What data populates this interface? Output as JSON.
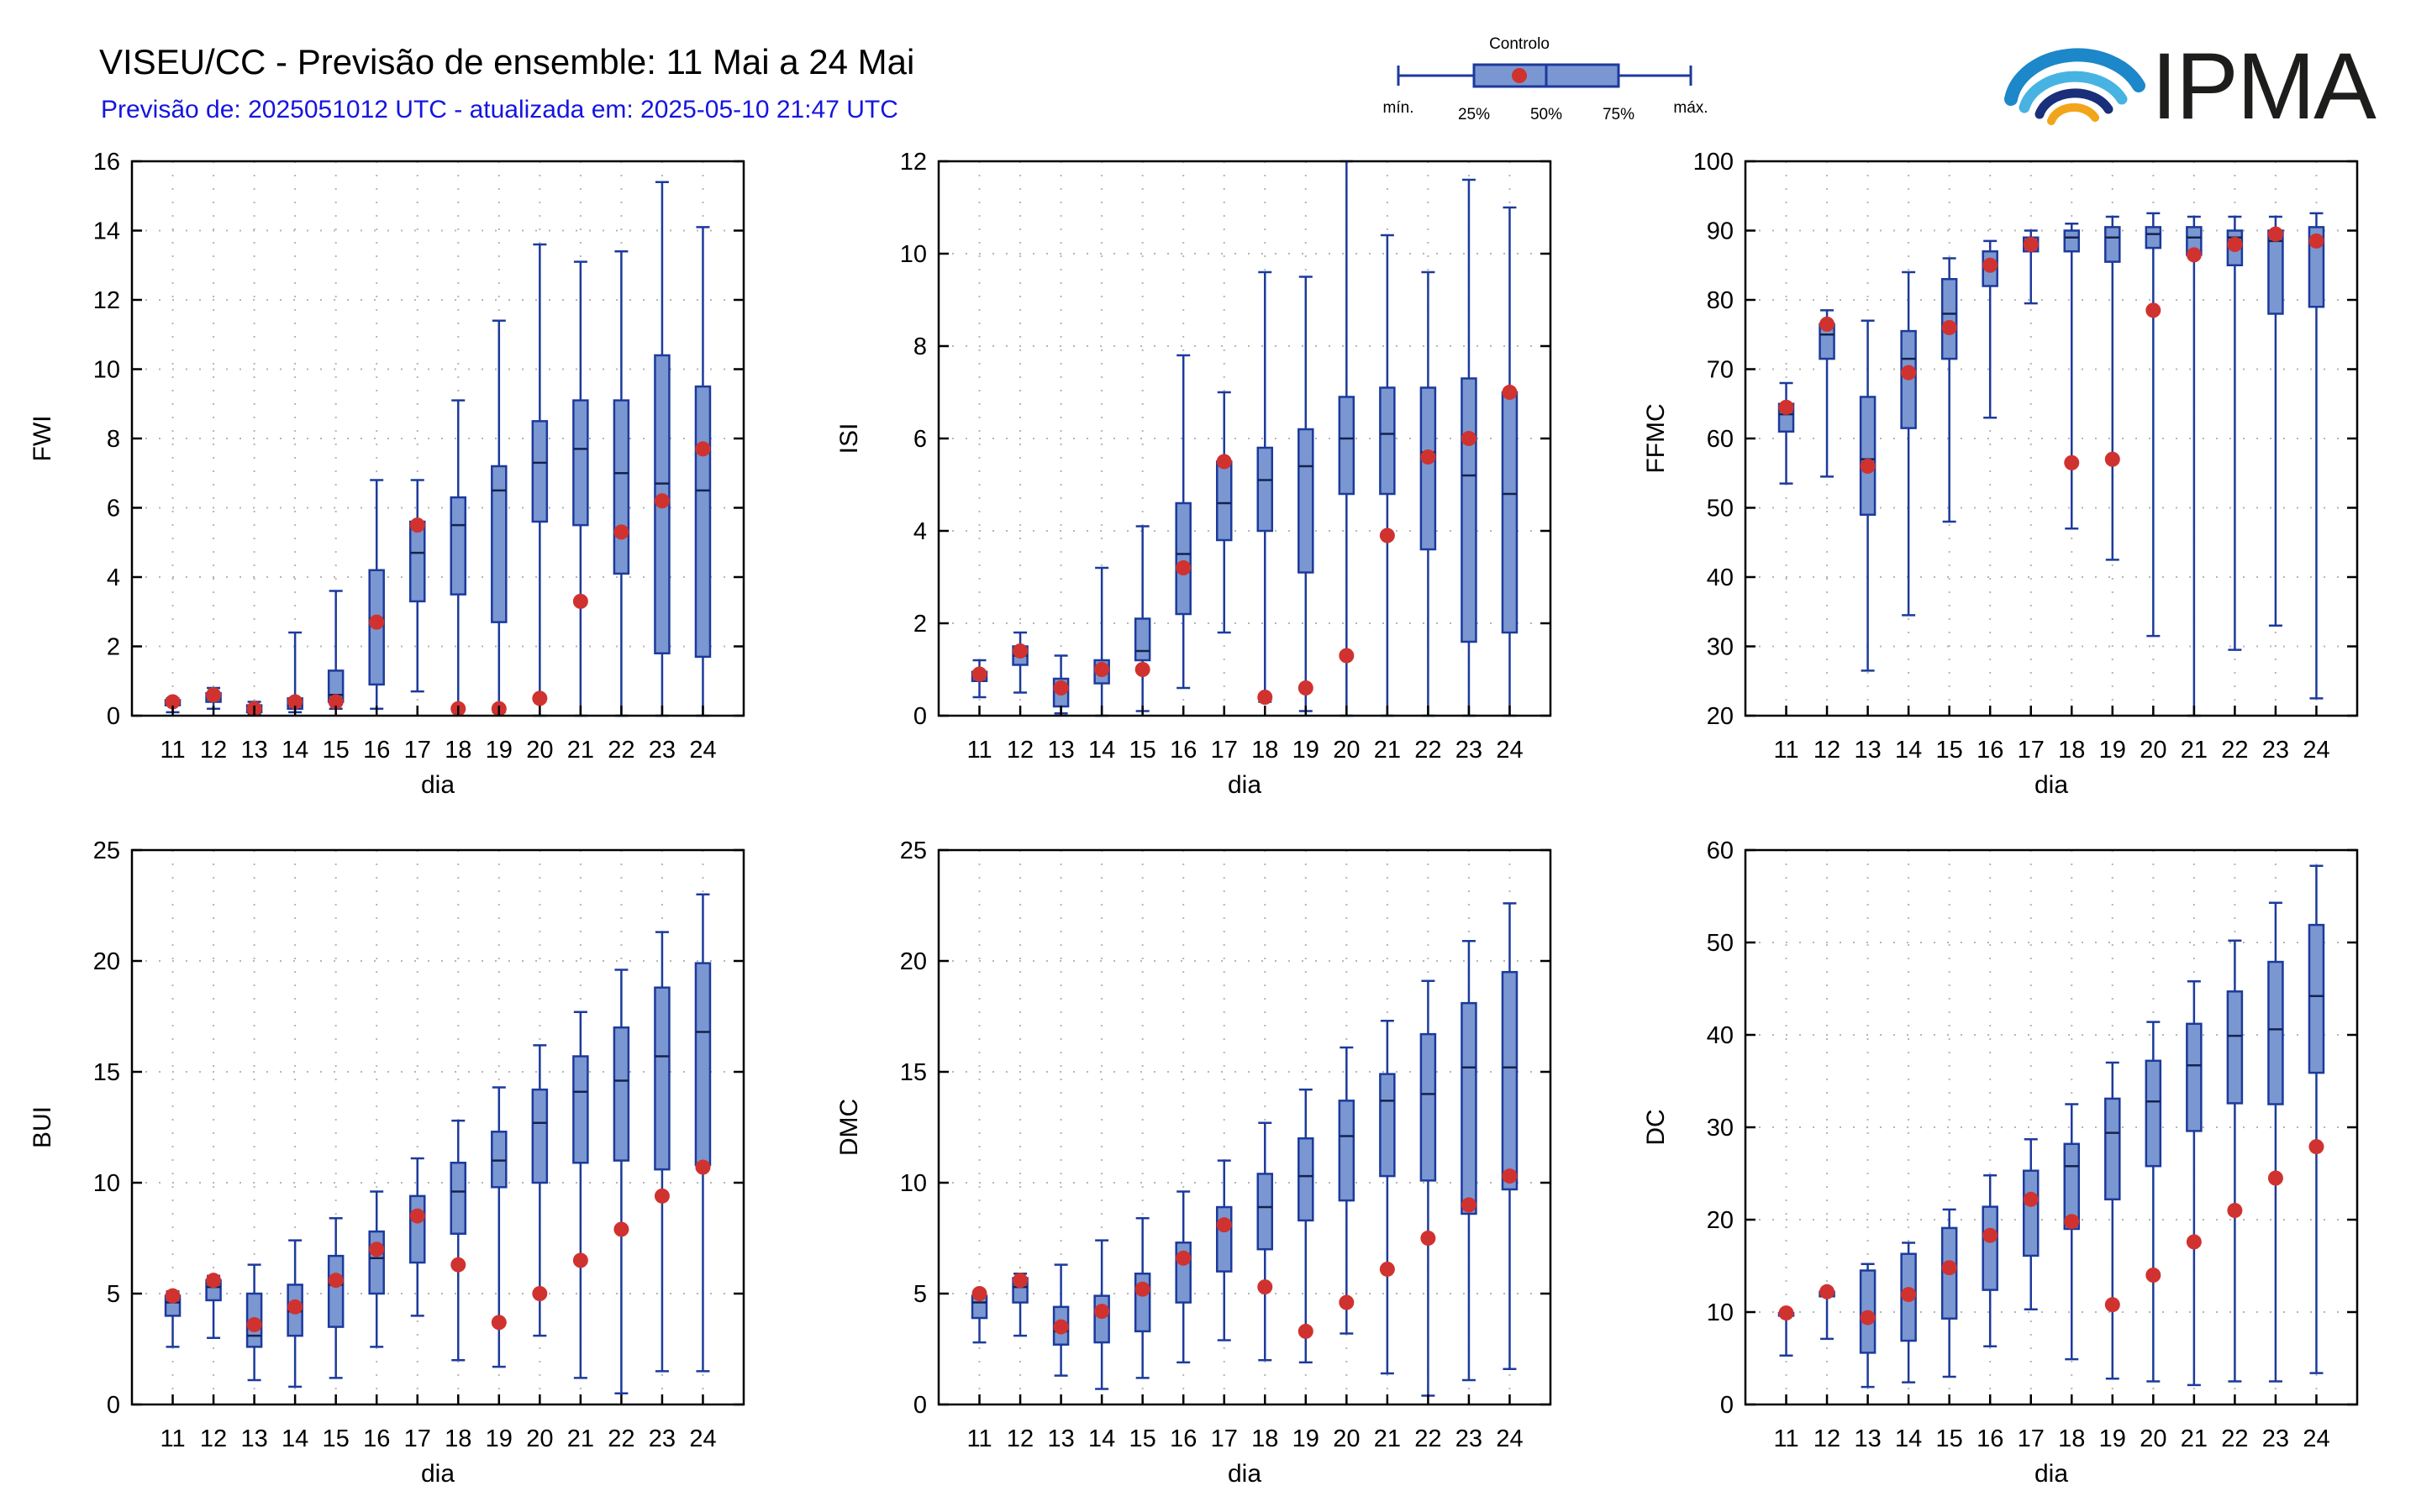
{
  "header": {
    "title": "VISEU/CC - Previsão de ensemble: 11 Mai a 24 Mai",
    "subtitle": "Previsão de: 2025051012 UTC - atualizada em: 2025-05-10 21:47 UTC"
  },
  "legend": {
    "control": "Controlo",
    "labels": [
      "mín.",
      "25%",
      "50%",
      "75%",
      "máx."
    ]
  },
  "logo": {
    "text": "IPMA"
  },
  "colors": {
    "box_fill": "#7b97d1",
    "box_stroke": "#1c3a9c",
    "control_point": "#d0322f",
    "subtitle": "#1515e0",
    "grid": "#b5b5b5"
  },
  "chart_data": [
    {
      "type": "box",
      "ylabel": "FWI",
      "xlabel": "dia",
      "categories": [
        "11",
        "12",
        "13",
        "14",
        "15",
        "16",
        "17",
        "18",
        "19",
        "20",
        "21",
        "22",
        "23",
        "24"
      ],
      "ylim": [
        0,
        16
      ],
      "yticks": [
        0,
        2,
        4,
        6,
        8,
        10,
        12,
        14,
        16
      ],
      "grid": true,
      "series": [
        {
          "min": 0.1,
          "q1": 0.3,
          "median": 0.4,
          "q3": 0.45,
          "max": 0.5
        },
        {
          "min": 0.2,
          "q1": 0.4,
          "median": 0.6,
          "q3": 0.65,
          "max": 0.8
        },
        {
          "min": 0.05,
          "q1": 0.1,
          "median": 0.2,
          "q3": 0.3,
          "max": 0.4
        },
        {
          "min": 0.1,
          "q1": 0.2,
          "median": 0.3,
          "q3": 0.5,
          "max": 2.4
        },
        {
          "min": 0.2,
          "q1": 0.4,
          "median": 0.6,
          "q3": 1.3,
          "max": 3.6
        },
        {
          "min": 0.2,
          "q1": 0.9,
          "median": 2.8,
          "q3": 4.2,
          "max": 6.8
        },
        {
          "min": 0.7,
          "q1": 3.3,
          "median": 4.7,
          "q3": 5.6,
          "max": 6.8
        },
        {
          "min": 0.2,
          "q1": 3.5,
          "median": 5.5,
          "q3": 6.3,
          "max": 9.1
        },
        {
          "min": 0.1,
          "q1": 2.7,
          "median": 6.5,
          "q3": 7.2,
          "max": 11.4
        },
        {
          "min": 0.0,
          "q1": 5.6,
          "median": 7.3,
          "q3": 8.5,
          "max": 13.6
        },
        {
          "min": 0.0,
          "q1": 5.5,
          "median": 7.7,
          "q3": 9.1,
          "max": 13.1
        },
        {
          "min": 0.0,
          "q1": 4.1,
          "median": 7.0,
          "q3": 9.1,
          "max": 13.4
        },
        {
          "min": 0.0,
          "q1": 1.8,
          "median": 6.7,
          "q3": 10.4,
          "max": 15.4
        },
        {
          "min": 0.0,
          "q1": 1.7,
          "median": 6.5,
          "q3": 9.5,
          "max": 14.1
        }
      ],
      "control": [
        0.4,
        0.6,
        0.2,
        0.4,
        0.4,
        2.7,
        5.5,
        0.2,
        0.2,
        0.5,
        3.3,
        5.3,
        6.2,
        7.7
      ]
    },
    {
      "type": "box",
      "ylabel": "ISI",
      "xlabel": "dia",
      "categories": [
        "11",
        "12",
        "13",
        "14",
        "15",
        "16",
        "17",
        "18",
        "19",
        "20",
        "21",
        "22",
        "23",
        "24"
      ],
      "ylim": [
        0,
        12
      ],
      "yticks": [
        0,
        2,
        4,
        6,
        8,
        10,
        12
      ],
      "grid": true,
      "series": [
        {
          "min": 0.4,
          "q1": 0.75,
          "median": 0.9,
          "q3": 0.95,
          "max": 1.2
        },
        {
          "min": 0.5,
          "q1": 1.1,
          "median": 1.3,
          "q3": 1.5,
          "max": 1.8
        },
        {
          "min": 0.05,
          "q1": 0.2,
          "median": 0.6,
          "q3": 0.8,
          "max": 1.3
        },
        {
          "min": 0.0,
          "q1": 0.7,
          "median": 1.0,
          "q3": 1.2,
          "max": 3.2
        },
        {
          "min": 0.1,
          "q1": 1.2,
          "median": 1.4,
          "q3": 2.1,
          "max": 4.1
        },
        {
          "min": 0.6,
          "q1": 2.2,
          "median": 3.5,
          "q3": 4.6,
          "max": 7.8
        },
        {
          "min": 1.8,
          "q1": 3.8,
          "median": 4.6,
          "q3": 5.5,
          "max": 7.0
        },
        {
          "min": 0.3,
          "q1": 4.0,
          "median": 5.1,
          "q3": 5.8,
          "max": 9.6
        },
        {
          "min": 0.1,
          "q1": 3.1,
          "median": 5.4,
          "q3": 6.2,
          "max": 9.5
        },
        {
          "min": 0.0,
          "q1": 4.8,
          "median": 6.0,
          "q3": 6.9,
          "max": 12.0
        },
        {
          "min": 0.0,
          "q1": 4.8,
          "median": 6.1,
          "q3": 7.1,
          "max": 10.4
        },
        {
          "min": 0.0,
          "q1": 3.6,
          "median": 5.7,
          "q3": 7.1,
          "max": 9.6
        },
        {
          "min": 0.0,
          "q1": 1.6,
          "median": 5.2,
          "q3": 7.3,
          "max": 11.6
        },
        {
          "min": 0.0,
          "q1": 1.8,
          "median": 4.8,
          "q3": 7.0,
          "max": 11.0
        }
      ],
      "control": [
        0.9,
        1.4,
        0.6,
        1.0,
        1.0,
        3.2,
        5.5,
        0.4,
        0.6,
        1.3,
        3.9,
        5.6,
        6.0,
        7.0
      ]
    },
    {
      "type": "box",
      "ylabel": "FFMC",
      "xlabel": "dia",
      "categories": [
        "11",
        "12",
        "13",
        "14",
        "15",
        "16",
        "17",
        "18",
        "19",
        "20",
        "21",
        "22",
        "23",
        "24"
      ],
      "ylim": [
        20,
        100
      ],
      "yticks": [
        20,
        30,
        40,
        50,
        60,
        70,
        80,
        90,
        100
      ],
      "grid": true,
      "series": [
        {
          "min": 53.5,
          "q1": 61,
          "median": 63.5,
          "q3": 65,
          "max": 68
        },
        {
          "min": 54.5,
          "q1": 71.5,
          "median": 75,
          "q3": 76.5,
          "max": 78.5
        },
        {
          "min": 26.5,
          "q1": 49,
          "median": 57,
          "q3": 66,
          "max": 77
        },
        {
          "min": 34.5,
          "q1": 61.5,
          "median": 71.5,
          "q3": 75.5,
          "max": 84
        },
        {
          "min": 48,
          "q1": 71.5,
          "median": 78,
          "q3": 83,
          "max": 86
        },
        {
          "min": 63,
          "q1": 82,
          "median": 85,
          "q3": 87,
          "max": 88.5
        },
        {
          "min": 79.5,
          "q1": 87,
          "median": 88,
          "q3": 89,
          "max": 90
        },
        {
          "min": 47,
          "q1": 87,
          "median": 89,
          "q3": 90,
          "max": 91
        },
        {
          "min": 42.5,
          "q1": 85.5,
          "median": 89,
          "q3": 90.5,
          "max": 92
        },
        {
          "min": 31.5,
          "q1": 87.5,
          "median": 89.5,
          "q3": 90.5,
          "max": 92.5
        },
        {
          "min": 20,
          "q1": 86.5,
          "median": 89,
          "q3": 90.5,
          "max": 92
        },
        {
          "min": 29.5,
          "q1": 85,
          "median": 89,
          "q3": 90,
          "max": 92
        },
        {
          "min": 33,
          "q1": 78,
          "median": 88.5,
          "q3": 90,
          "max": 92
        },
        {
          "min": 22.5,
          "q1": 79,
          "median": 88.5,
          "q3": 90.5,
          "max": 92.5
        }
      ],
      "control": [
        64.5,
        76.5,
        56,
        69.5,
        76,
        85,
        88,
        56.5,
        57,
        78.5,
        86.5,
        88,
        89.5,
        88.5
      ]
    },
    {
      "type": "box",
      "ylabel": "BUI",
      "xlabel": "dia",
      "categories": [
        "11",
        "12",
        "13",
        "14",
        "15",
        "16",
        "17",
        "18",
        "19",
        "20",
        "21",
        "22",
        "23",
        "24"
      ],
      "ylim": [
        0,
        25
      ],
      "yticks": [
        0,
        5,
        10,
        15,
        20,
        25
      ],
      "grid": true,
      "series": [
        {
          "min": 2.6,
          "q1": 4.0,
          "median": 4.6,
          "q3": 4.9,
          "max": 5.1
        },
        {
          "min": 3.0,
          "q1": 4.7,
          "median": 5.3,
          "q3": 5.6,
          "max": 5.8
        },
        {
          "min": 1.1,
          "q1": 2.6,
          "median": 3.1,
          "q3": 5.0,
          "max": 6.3
        },
        {
          "min": 0.8,
          "q1": 3.1,
          "median": 4.2,
          "q3": 5.4,
          "max": 7.4
        },
        {
          "min": 1.2,
          "q1": 3.5,
          "median": 5.4,
          "q3": 6.7,
          "max": 8.4
        },
        {
          "min": 2.6,
          "q1": 5.0,
          "median": 6.6,
          "q3": 7.8,
          "max": 9.6
        },
        {
          "min": 4.0,
          "q1": 6.4,
          "median": 8.4,
          "q3": 9.4,
          "max": 11.1
        },
        {
          "min": 2.0,
          "q1": 7.7,
          "median": 9.6,
          "q3": 10.9,
          "max": 12.8
        },
        {
          "min": 1.7,
          "q1": 9.8,
          "median": 11.0,
          "q3": 12.3,
          "max": 14.3
        },
        {
          "min": 3.1,
          "q1": 10.0,
          "median": 12.7,
          "q3": 14.2,
          "max": 16.2
        },
        {
          "min": 1.2,
          "q1": 10.9,
          "median": 14.1,
          "q3": 15.7,
          "max": 17.7
        },
        {
          "min": 0.5,
          "q1": 11.0,
          "median": 14.6,
          "q3": 17.0,
          "max": 19.6
        },
        {
          "min": 1.5,
          "q1": 10.6,
          "median": 15.7,
          "q3": 18.8,
          "max": 21.3
        },
        {
          "min": 1.5,
          "q1": 10.8,
          "median": 16.8,
          "q3": 19.9,
          "max": 23.0
        }
      ],
      "control": [
        4.9,
        5.6,
        3.6,
        4.4,
        5.6,
        7.0,
        8.5,
        6.3,
        3.7,
        5.0,
        6.5,
        7.9,
        9.4,
        10.7
      ]
    },
    {
      "type": "box",
      "ylabel": "DMC",
      "xlabel": "dia",
      "categories": [
        "11",
        "12",
        "13",
        "14",
        "15",
        "16",
        "17",
        "18",
        "19",
        "20",
        "21",
        "22",
        "23",
        "24"
      ],
      "ylim": [
        0,
        25
      ],
      "yticks": [
        0,
        5,
        10,
        15,
        20,
        25
      ],
      "grid": true,
      "series": [
        {
          "min": 2.8,
          "q1": 3.9,
          "median": 4.6,
          "q3": 4.9,
          "max": 5.1
        },
        {
          "min": 3.1,
          "q1": 4.6,
          "median": 5.3,
          "q3": 5.7,
          "max": 5.9
        },
        {
          "min": 1.3,
          "q1": 2.7,
          "median": 3.3,
          "q3": 4.4,
          "max": 6.3
        },
        {
          "min": 0.7,
          "q1": 2.8,
          "median": 4.1,
          "q3": 4.9,
          "max": 7.4
        },
        {
          "min": 1.2,
          "q1": 3.3,
          "median": 5.3,
          "q3": 5.9,
          "max": 8.4
        },
        {
          "min": 1.9,
          "q1": 4.6,
          "median": 6.5,
          "q3": 7.3,
          "max": 9.6
        },
        {
          "min": 2.9,
          "q1": 6.0,
          "median": 8.1,
          "q3": 8.9,
          "max": 11.0
        },
        {
          "min": 2.0,
          "q1": 7.0,
          "median": 8.9,
          "q3": 10.4,
          "max": 12.7
        },
        {
          "min": 1.9,
          "q1": 8.3,
          "median": 10.3,
          "q3": 12.0,
          "max": 14.2
        },
        {
          "min": 3.2,
          "q1": 9.2,
          "median": 12.1,
          "q3": 13.7,
          "max": 16.1
        },
        {
          "min": 1.4,
          "q1": 10.3,
          "median": 13.7,
          "q3": 14.9,
          "max": 17.3
        },
        {
          "min": 0.4,
          "q1": 10.1,
          "median": 14.0,
          "q3": 16.7,
          "max": 19.1
        },
        {
          "min": 1.1,
          "q1": 8.6,
          "median": 15.2,
          "q3": 18.1,
          "max": 20.9
        },
        {
          "min": 1.6,
          "q1": 9.7,
          "median": 15.2,
          "q3": 19.5,
          "max": 22.6
        }
      ],
      "control": [
        5.0,
        5.6,
        3.5,
        4.2,
        5.2,
        6.6,
        8.1,
        5.3,
        3.3,
        4.6,
        6.1,
        7.5,
        9.0,
        10.3
      ]
    },
    {
      "type": "box",
      "ylabel": "DC",
      "xlabel": "dia",
      "categories": [
        "11",
        "12",
        "13",
        "14",
        "15",
        "16",
        "17",
        "18",
        "19",
        "20",
        "21",
        "22",
        "23",
        "24"
      ],
      "ylim": [
        0,
        60
      ],
      "yticks": [
        0,
        10,
        20,
        30,
        40,
        50,
        60
      ],
      "grid": true,
      "series": [
        {
          "min": 5.3,
          "q1": 9.6,
          "median": 9.8,
          "q3": 9.9,
          "max": 10.0
        },
        {
          "min": 7.1,
          "q1": 11.7,
          "median": 12.0,
          "q3": 12.2,
          "max": 12.4
        },
        {
          "min": 1.9,
          "q1": 5.6,
          "median": 9.5,
          "q3": 14.5,
          "max": 15.2
        },
        {
          "min": 2.4,
          "q1": 6.9,
          "median": 12.0,
          "q3": 16.3,
          "max": 17.5
        },
        {
          "min": 3.0,
          "q1": 9.3,
          "median": 14.8,
          "q3": 19.1,
          "max": 21.1
        },
        {
          "min": 6.3,
          "q1": 12.4,
          "median": 18.3,
          "q3": 21.4,
          "max": 24.8
        },
        {
          "min": 10.3,
          "q1": 16.1,
          "median": 22.0,
          "q3": 25.3,
          "max": 28.7
        },
        {
          "min": 4.9,
          "q1": 19.0,
          "median": 25.8,
          "q3": 28.2,
          "max": 32.5
        },
        {
          "min": 2.8,
          "q1": 22.2,
          "median": 29.4,
          "q3": 33.1,
          "max": 37.0
        },
        {
          "min": 2.5,
          "q1": 25.8,
          "median": 32.8,
          "q3": 37.2,
          "max": 41.4
        },
        {
          "min": 2.1,
          "q1": 29.6,
          "median": 36.7,
          "q3": 41.2,
          "max": 45.8
        },
        {
          "min": 2.5,
          "q1": 32.6,
          "median": 39.9,
          "q3": 44.7,
          "max": 50.2
        },
        {
          "min": 2.5,
          "q1": 32.5,
          "median": 40.6,
          "q3": 47.9,
          "max": 54.3
        },
        {
          "min": 3.4,
          "q1": 35.9,
          "median": 44.2,
          "q3": 51.9,
          "max": 58.3
        }
      ],
      "control": [
        9.9,
        12.2,
        9.4,
        11.9,
        14.8,
        18.3,
        22.2,
        19.8,
        10.8,
        14.0,
        17.6,
        21.0,
        24.5,
        27.9
      ]
    }
  ]
}
